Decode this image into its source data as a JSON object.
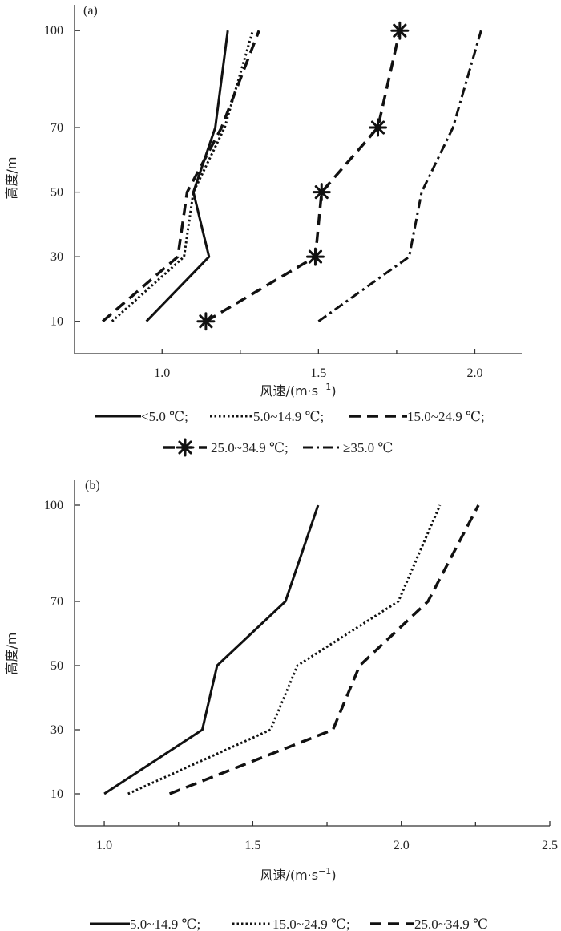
{
  "chart_data": [
    {
      "type": "line",
      "panel_label": "(a)",
      "xlabel": "风速/(m·s",
      "xlabel_sup": "−1",
      "xlabel_close": ")",
      "ylabel": "高度/m",
      "xlim": [
        0.72,
        2.15
      ],
      "ylim": [
        0,
        108
      ],
      "xticks": [
        1.0,
        1.5,
        2.0
      ],
      "xtick_labels": [
        "1.0",
        "1.5",
        "2.0"
      ],
      "yticks": [
        10,
        30,
        50,
        70,
        100
      ],
      "ytick_labels": [
        "10",
        "30",
        "50",
        "70",
        "100"
      ],
      "grid": false,
      "legend_position": "bottom",
      "series": [
        {
          "name": "<5.0 ℃;",
          "style": "solid",
          "x": [
            0.95,
            1.15,
            1.1,
            1.17,
            1.21
          ],
          "y": [
            10,
            30,
            50,
            70,
            100
          ]
        },
        {
          "name": "5.0~14.9 ℃;",
          "style": "dotted",
          "x": [
            0.84,
            1.07,
            1.1,
            1.2,
            1.29
          ],
          "y": [
            10,
            30,
            50,
            70,
            100
          ]
        },
        {
          "name": "15.0~24.9 ℃;",
          "style": "dashed",
          "x": [
            0.81,
            1.05,
            1.08,
            1.19,
            1.31
          ],
          "y": [
            10,
            30,
            50,
            70,
            100
          ]
        },
        {
          "name": "25.0~34.9 ℃;",
          "style": "dashed-star",
          "x": [
            1.14,
            1.49,
            1.51,
            1.69,
            1.76
          ],
          "y": [
            10,
            30,
            50,
            70,
            100
          ]
        },
        {
          "name": "≥35.0 ℃",
          "style": "dashdot",
          "x": [
            1.5,
            1.79,
            1.83,
            1.93,
            2.02
          ],
          "y": [
            10,
            30,
            50,
            70,
            100
          ]
        }
      ]
    },
    {
      "type": "line",
      "panel_label": "(b)",
      "xlabel": "风速/(m·s",
      "xlabel_sup": "−1",
      "xlabel_close": ")",
      "ylabel": "高度/m",
      "xlim": [
        0.9,
        2.5
      ],
      "ylim": [
        0,
        108
      ],
      "xticks": [
        1.0,
        1.5,
        2.0,
        2.5
      ],
      "xtick_labels": [
        "1.0",
        "1.5",
        "2.0",
        "2.5"
      ],
      "yticks": [
        10,
        30,
        50,
        70,
        100
      ],
      "ytick_labels": [
        "10",
        "30",
        "50",
        "70",
        "100"
      ],
      "grid": false,
      "legend_position": "bottom",
      "series": [
        {
          "name": "5.0~14.9 ℃;",
          "style": "solid",
          "x": [
            1.0,
            1.33,
            1.38,
            1.61,
            1.72
          ],
          "y": [
            10,
            30,
            50,
            70,
            100
          ]
        },
        {
          "name": "15.0~24.9 ℃;",
          "style": "dotted",
          "x": [
            1.08,
            1.56,
            1.65,
            1.99,
            2.13
          ],
          "y": [
            10,
            30,
            50,
            70,
            100
          ]
        },
        {
          "name": "25.0~34.9 ℃",
          "style": "dashed",
          "x": [
            1.22,
            1.77,
            1.86,
            2.09,
            2.26
          ],
          "y": [
            10,
            30,
            50,
            70,
            100
          ]
        }
      ]
    }
  ]
}
